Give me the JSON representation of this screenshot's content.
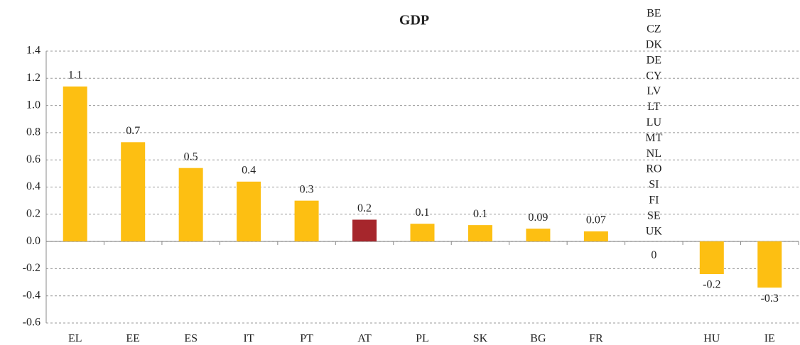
{
  "chart_data": {
    "type": "bar",
    "title": "GDP",
    "categories": [
      "EL",
      "EE",
      "ES",
      "IT",
      "PT",
      "AT",
      "PL",
      "SK",
      "BG",
      "FR",
      null,
      "HU",
      "IE"
    ],
    "values": [
      1.14,
      0.73,
      0.54,
      0.44,
      0.3,
      0.16,
      0.13,
      0.12,
      0.094,
      0.074,
      0,
      -0.24,
      -0.34
    ],
    "value_labels": [
      "1.1",
      "0.7",
      "0.5",
      "0.4",
      "0.3",
      "0.2",
      "0.1",
      "0.1",
      "0.09",
      "0.07",
      "0",
      "-0.2",
      "-0.3"
    ],
    "colors": [
      "#fdbf12",
      "#fdbf12",
      "#fdbf12",
      "#fdbf12",
      "#fdbf12",
      "#a6262c",
      "#fdbf12",
      "#fdbf12",
      "#fdbf12",
      "#fdbf12",
      "#fdbf12",
      "#fdbf12",
      "#fdbf12"
    ],
    "zero_group": [
      "BE",
      "CZ",
      "DK",
      "DE",
      "CY",
      "LV",
      "LT",
      "LU",
      "MT",
      "NL",
      "RO",
      "SI",
      "FI",
      "SE",
      "UK"
    ],
    "ylim": [
      -0.6,
      1.4
    ],
    "yticks": [
      -0.6,
      -0.4,
      -0.2,
      {
        "value": 0,
        "label": "0.0"
      },
      0.2,
      0.4,
      0.6,
      0.8,
      {
        "value": 1,
        "label": "1.0"
      },
      1.2,
      1.4
    ],
    "grid": true
  }
}
